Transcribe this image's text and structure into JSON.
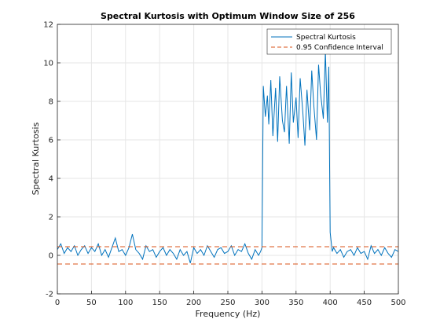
{
  "chart_data": {
    "type": "line",
    "title": "Spectral Kurtosis with Optimum Window Size of 256",
    "xlabel": "Frequency (Hz)",
    "ylabel": "Spectral Kurtosis",
    "xlim": [
      0,
      500
    ],
    "ylim": [
      -2,
      12
    ],
    "xticks": [
      "0",
      "50",
      "100",
      "150",
      "200",
      "250",
      "300",
      "350",
      "400",
      "450",
      "500"
    ],
    "yticks": [
      "-2",
      "0",
      "2",
      "4",
      "6",
      "8",
      "10",
      "12"
    ],
    "grid": true,
    "legend_position": "top-right",
    "series": [
      {
        "name": "Spectral Kurtosis",
        "color": "#0072BD",
        "style": "solid",
        "x": [
          0,
          5,
          10,
          15,
          20,
          25,
          30,
          35,
          40,
          45,
          50,
          55,
          60,
          65,
          70,
          75,
          80,
          85,
          90,
          95,
          100,
          105,
          110,
          115,
          120,
          125,
          130,
          135,
          140,
          145,
          150,
          155,
          160,
          165,
          170,
          175,
          180,
          185,
          190,
          195,
          200,
          205,
          210,
          215,
          220,
          225,
          230,
          235,
          240,
          245,
          250,
          255,
          260,
          265,
          270,
          275,
          280,
          285,
          290,
          295,
          298,
          300,
          302,
          305,
          308,
          310,
          313,
          316,
          320,
          323,
          326,
          330,
          333,
          336,
          340,
          343,
          346,
          350,
          353,
          356,
          360,
          363,
          366,
          370,
          373,
          376,
          380,
          383,
          386,
          390,
          393,
          396,
          398,
          400,
          403,
          405,
          410,
          415,
          420,
          425,
          430,
          435,
          440,
          445,
          450,
          455,
          460,
          465,
          470,
          475,
          480,
          485,
          490,
          495,
          500
        ],
        "values": [
          0.3,
          0.6,
          0.1,
          0.4,
          0.2,
          0.5,
          0.0,
          0.3,
          0.5,
          0.1,
          0.4,
          0.2,
          0.6,
          0.0,
          0.3,
          -0.1,
          0.4,
          0.9,
          0.2,
          0.3,
          0.0,
          0.4,
          1.1,
          0.3,
          0.1,
          -0.2,
          0.5,
          0.2,
          0.3,
          -0.1,
          0.2,
          0.4,
          0.0,
          0.3,
          0.1,
          -0.2,
          0.3,
          0.0,
          0.2,
          -0.4,
          0.4,
          0.1,
          0.3,
          0.0,
          0.5,
          0.2,
          -0.1,
          0.3,
          0.4,
          0.1,
          0.2,
          0.5,
          0.0,
          0.3,
          0.2,
          0.6,
          0.1,
          -0.2,
          0.3,
          0.0,
          0.2,
          0.4,
          8.8,
          7.2,
          8.3,
          6.8,
          9.1,
          6.2,
          8.7,
          5.9,
          9.3,
          7.0,
          6.4,
          8.8,
          5.8,
          9.5,
          6.9,
          8.2,
          6.1,
          9.2,
          7.4,
          5.7,
          8.6,
          6.5,
          9.6,
          7.8,
          6.0,
          9.9,
          8.4,
          7.1,
          10.6,
          6.9,
          9.8,
          1.2,
          0.2,
          0.4,
          0.1,
          0.3,
          -0.1,
          0.2,
          0.3,
          0.0,
          0.4,
          0.1,
          0.2,
          -0.2,
          0.5,
          0.1,
          0.3,
          0.0,
          0.4,
          0.1,
          -0.1,
          0.3,
          0.2
        ]
      },
      {
        "name": "0.95 Confidence Interval",
        "color": "#D95319",
        "style": "dashed",
        "x": [
          0,
          500
        ],
        "values": [
          0.45,
          0.45
        ]
      },
      {
        "name": "",
        "color": "#D95319",
        "style": "dashed",
        "x": [
          0,
          500
        ],
        "values": [
          -0.45,
          -0.45
        ]
      }
    ]
  }
}
